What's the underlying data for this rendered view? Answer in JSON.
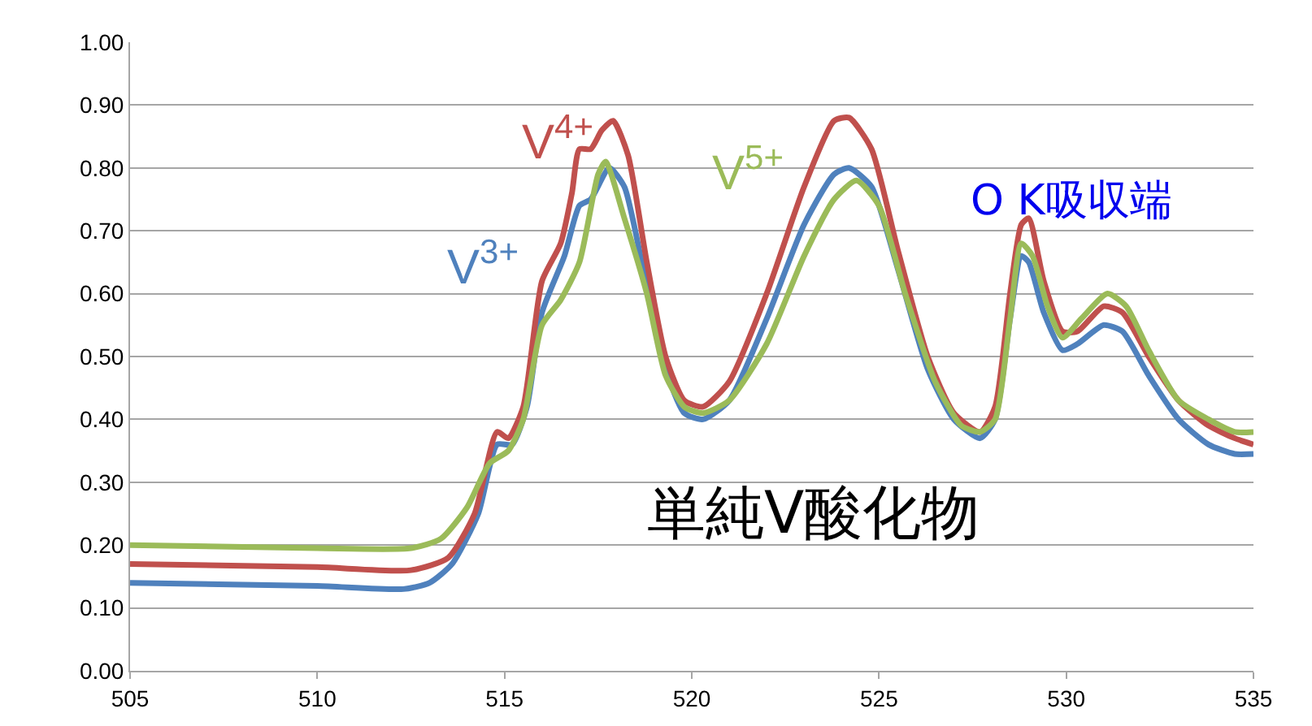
{
  "chart_data": {
    "type": "line",
    "xlim": [
      505,
      535
    ],
    "xticks": [
      505,
      510,
      515,
      520,
      525,
      530,
      535
    ],
    "ylim": [
      0,
      1
    ],
    "yticks": [
      {
        "value": 0,
        "label": "0.00"
      },
      {
        "value": 0.1,
        "label": "0.10"
      },
      {
        "value": 0.2,
        "label": "0.20"
      },
      {
        "value": 0.3,
        "label": "0.30"
      },
      {
        "value": 0.4,
        "label": "0.40"
      },
      {
        "value": 0.5,
        "label": "0.50"
      },
      {
        "value": 0.6,
        "label": "0.60"
      },
      {
        "value": 0.7,
        "label": "0.70"
      },
      {
        "value": 0.8,
        "label": "0.80"
      },
      {
        "value": 0.9,
        "label": "0.90"
      },
      {
        "value": 1,
        "label": "1.00"
      }
    ],
    "grid": "y",
    "legend": false,
    "marker": "none",
    "line_style": "solid",
    "annotations": [
      "O K吸収端",
      "単純V酸化物"
    ],
    "series": [
      {
        "name": "V$^{3+}$",
        "color": "#4f81bd",
        "x": [
          505,
          510,
          512.3,
          513,
          513.6,
          514.3,
          514.8,
          515.2,
          515.6,
          516,
          516.6,
          517,
          517.3,
          517.8,
          518.2,
          518.7,
          519.3,
          519.8,
          520.3,
          521,
          522,
          523,
          523.8,
          524.2,
          524.8,
          525.5,
          526.3,
          527,
          527.7,
          528.1,
          528.5,
          528.8,
          529,
          529.4,
          529.9,
          530.3,
          531,
          531.5,
          532.2,
          533,
          533.8,
          534.5,
          535
        ],
        "values": [
          0.14,
          0.135,
          0.13,
          0.14,
          0.17,
          0.25,
          0.36,
          0.36,
          0.42,
          0.57,
          0.66,
          0.74,
          0.75,
          0.8,
          0.77,
          0.64,
          0.48,
          0.41,
          0.4,
          0.43,
          0.56,
          0.71,
          0.79,
          0.8,
          0.77,
          0.64,
          0.48,
          0.4,
          0.37,
          0.4,
          0.56,
          0.66,
          0.65,
          0.57,
          0.51,
          0.52,
          0.55,
          0.54,
          0.47,
          0.4,
          0.36,
          0.345,
          0.345
        ]
      },
      {
        "name": "V$^{4+}$",
        "color": "#c0504d",
        "x": [
          505,
          510,
          512.5,
          513.5,
          514.2,
          514.8,
          515.1,
          515.5,
          516,
          516.5,
          516.8,
          517,
          517.3,
          517.6,
          517.9,
          518.3,
          518.8,
          519.3,
          519.8,
          520.3,
          521,
          522,
          523,
          523.8,
          524.2,
          524.8,
          525.5,
          526.3,
          527,
          527.7,
          528.1,
          528.5,
          528.8,
          529,
          529.4,
          529.9,
          530.3,
          531,
          531.5,
          532.2,
          533,
          533.8,
          534.5,
          535
        ],
        "values": [
          0.17,
          0.165,
          0.16,
          0.18,
          0.25,
          0.38,
          0.37,
          0.42,
          0.62,
          0.68,
          0.76,
          0.83,
          0.83,
          0.86,
          0.875,
          0.82,
          0.65,
          0.5,
          0.43,
          0.42,
          0.46,
          0.6,
          0.77,
          0.875,
          0.88,
          0.83,
          0.67,
          0.5,
          0.41,
          0.38,
          0.42,
          0.6,
          0.71,
          0.72,
          0.62,
          0.54,
          0.54,
          0.58,
          0.57,
          0.5,
          0.43,
          0.39,
          0.37,
          0.36
        ]
      },
      {
        "name": "V$^{5+}$",
        "color": "#9bbb59",
        "x": [
          505,
          510,
          512.5,
          513.3,
          514,
          514.6,
          515.1,
          515.5,
          516,
          516.5,
          517,
          517.5,
          517.7,
          518.2,
          518.8,
          519.3,
          519.8,
          520.3,
          521,
          522,
          523,
          523.8,
          524.4,
          525,
          525.7,
          526.5,
          527.2,
          527.7,
          528.1,
          528.5,
          528.8,
          529.1,
          529.5,
          529.9,
          530.4,
          531.1,
          531.6,
          532.2,
          533,
          533.8,
          534.5,
          535
        ],
        "values": [
          0.2,
          0.195,
          0.195,
          0.21,
          0.26,
          0.33,
          0.35,
          0.4,
          0.55,
          0.59,
          0.65,
          0.79,
          0.81,
          0.72,
          0.6,
          0.47,
          0.42,
          0.41,
          0.43,
          0.52,
          0.66,
          0.75,
          0.78,
          0.74,
          0.6,
          0.46,
          0.39,
          0.38,
          0.4,
          0.56,
          0.68,
          0.66,
          0.58,
          0.53,
          0.56,
          0.6,
          0.58,
          0.51,
          0.43,
          0.4,
          0.38,
          0.38
        ]
      }
    ]
  }
}
